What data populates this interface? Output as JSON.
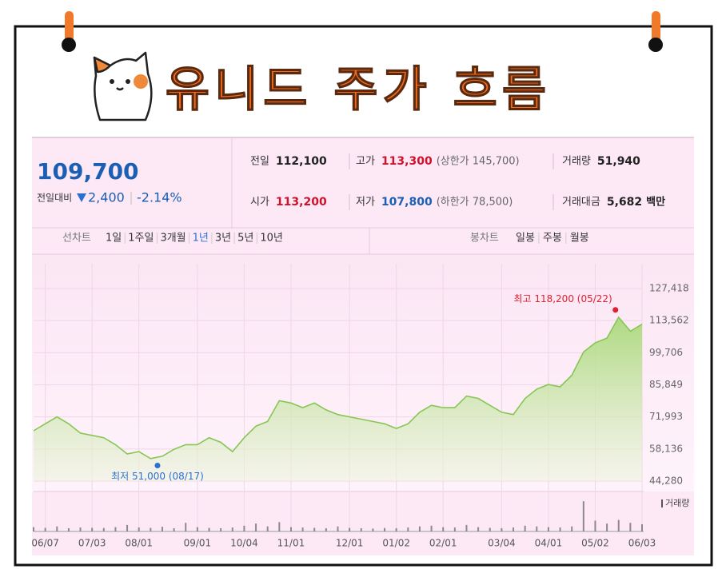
{
  "header": {
    "title": "유니드 주가 흐름"
  },
  "quote": {
    "price": "109,700",
    "change_label": "전일대비",
    "change": "2,400",
    "change_pct": "-2.14%"
  },
  "stats": [
    {
      "label": "전일",
      "value": "112,100",
      "color": "#222222"
    },
    {
      "label": "고가",
      "value": "113,300",
      "note": "(상한가 145,700)",
      "color": "#d0112b"
    },
    {
      "label": "거래량",
      "value": "51,940",
      "color": "#222222"
    },
    {
      "label": "시가",
      "value": "113,200",
      "color": "#d0112b"
    },
    {
      "label": "저가",
      "value": "107,800",
      "note": "(하한가 78,500)",
      "color": "#1a5fb4"
    },
    {
      "label": "거래대금",
      "value": "5,682",
      "unit": "백만",
      "color": "#222222"
    }
  ],
  "tabs": {
    "line_label": "선차트",
    "line_periods": [
      "1일",
      "1주일",
      "3개월",
      "1년",
      "3년",
      "5년",
      "10년"
    ],
    "selected_index": 3,
    "candle_label": "봉차트",
    "candle_periods": [
      "일봉",
      "주봉",
      "월봉"
    ]
  },
  "chart_data": {
    "type": "area",
    "color": "#86c653",
    "categories": [
      null,
      "06/07",
      null,
      null,
      null,
      "07/03",
      null,
      null,
      null,
      "08/01",
      null,
      null,
      null,
      null,
      "09/01",
      null,
      null,
      null,
      "10/04",
      null,
      null,
      null,
      "11/01",
      null,
      null,
      null,
      null,
      "12/01",
      null,
      null,
      null,
      "01/02",
      null,
      null,
      null,
      "02/01",
      null,
      null,
      null,
      null,
      "03/04",
      null,
      null,
      null,
      "04/01",
      null,
      null,
      null,
      "05/02",
      null,
      null,
      null,
      "06/03"
    ],
    "values": [
      66000,
      69000,
      72000,
      69000,
      65000,
      64000,
      63000,
      60000,
      56000,
      57000,
      54000,
      55000,
      58000,
      60000,
      60000,
      63000,
      61000,
      57000,
      63000,
      68000,
      70000,
      79000,
      78000,
      76000,
      78000,
      75000,
      73000,
      72000,
      71000,
      70000,
      69000,
      67000,
      69000,
      74000,
      77000,
      76000,
      76000,
      81000,
      80000,
      77000,
      74000,
      73000,
      80000,
      84000,
      86000,
      85000,
      90000,
      100000,
      104000,
      106000,
      115000,
      109000,
      112000
    ],
    "ylim": [
      44280,
      127418
    ],
    "yticks": [
      {
        "value": 44280,
        "label": "44,280"
      },
      {
        "value": 58136,
        "label": "58,136"
      },
      {
        "value": 71993,
        "label": "71,993"
      },
      {
        "value": 85849,
        "label": "85,849"
      },
      {
        "value": 99706,
        "label": "99,706"
      },
      {
        "value": 113562,
        "label": "113,562"
      },
      {
        "value": 127418,
        "label": "127,418"
      }
    ],
    "grid": true,
    "high": {
      "label": "최고 118,200 (05/22)",
      "value": 118200,
      "color": "#e0202f"
    },
    "low": {
      "label": "최저 51,000 (08/17)",
      "value": 51000,
      "color": "#2d6fd1"
    },
    "volume": {
      "name": "거래량",
      "color": "#8a8a8a",
      "axis": "y2",
      "values": [
        60000,
        50000,
        70000,
        45000,
        55000,
        50000,
        48000,
        60000,
        90000,
        55000,
        50000,
        65000,
        45000,
        120000,
        60000,
        50000,
        45000,
        55000,
        80000,
        110000,
        70000,
        130000,
        60000,
        55000,
        50000,
        45000,
        70000,
        50000,
        45000,
        40000,
        48000,
        45000,
        55000,
        70000,
        80000,
        60000,
        55000,
        90000,
        60000,
        50000,
        45000,
        55000,
        80000,
        70000,
        60000,
        55000,
        70000,
        420000,
        150000,
        110000,
        160000,
        120000,
        100000
      ]
    },
    "y2lim": [
      0,
      500000
    ]
  }
}
